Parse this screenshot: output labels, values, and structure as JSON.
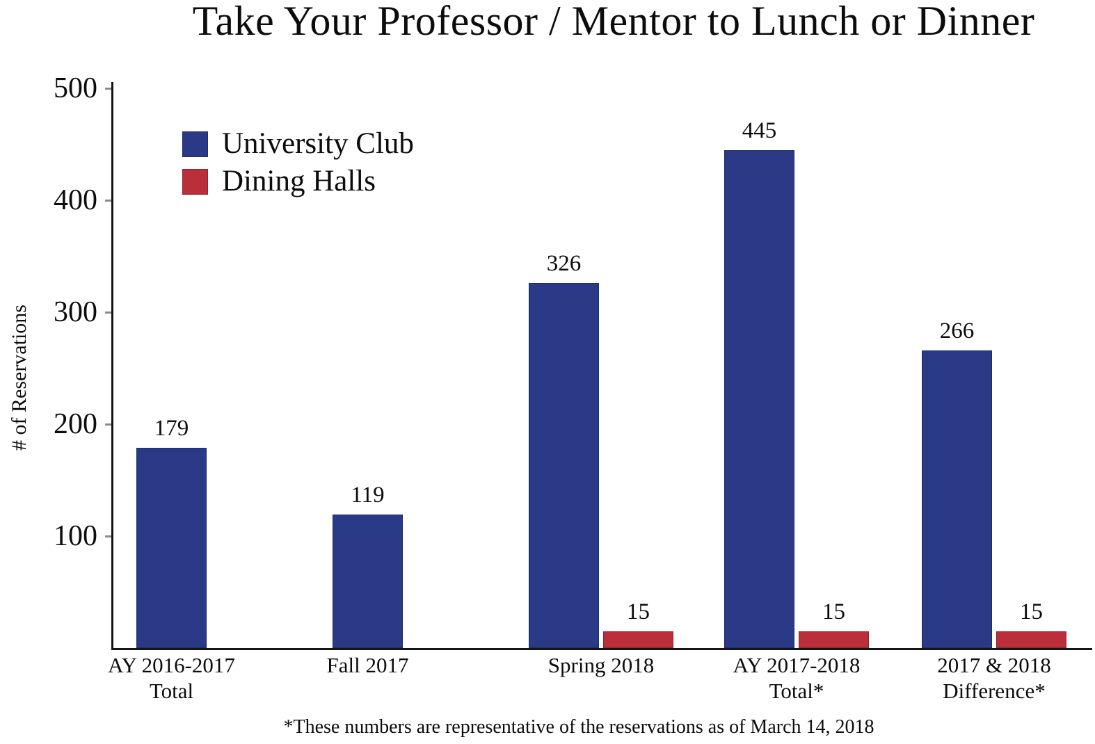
{
  "chart_data": {
    "type": "bar",
    "title": "Take Your Professor / Mentor to Lunch or Dinner",
    "ylabel": "# of Reservations",
    "xlabel": "",
    "ylim": [
      0,
      500
    ],
    "yticks": [
      100,
      200,
      300,
      400,
      500
    ],
    "grid": false,
    "legend_position": "upper-left-inside",
    "categories": [
      [
        "AY 2016-2017",
        "Total"
      ],
      [
        "Fall 2017"
      ],
      [
        "Spring 2018"
      ],
      [
        "AY 2017-2018",
        "Total*"
      ],
      [
        "2017 & 2018",
        "Difference*"
      ]
    ],
    "series": [
      {
        "name": "University Club",
        "color": "#2a3a86",
        "border_color": "#1c2a66",
        "values": [
          179,
          119,
          326,
          445,
          266
        ]
      },
      {
        "name": "Dining Halls",
        "color": "#bc2e3a",
        "border_color": "#8f2230",
        "values": [
          null,
          null,
          15,
          15,
          15
        ]
      }
    ],
    "value_labels": {
      "University Club": [
        "179",
        "119",
        "326",
        "445",
        "266"
      ],
      "Dining Halls": [
        "",
        "",
        "15",
        "15",
        "15"
      ]
    },
    "footnote": "*These numbers are representative of the reservations as of  March 14, 2018",
    "colors": {
      "background": "#ffffff",
      "axis": "#141414",
      "text": "#0c0c0c"
    }
  }
}
